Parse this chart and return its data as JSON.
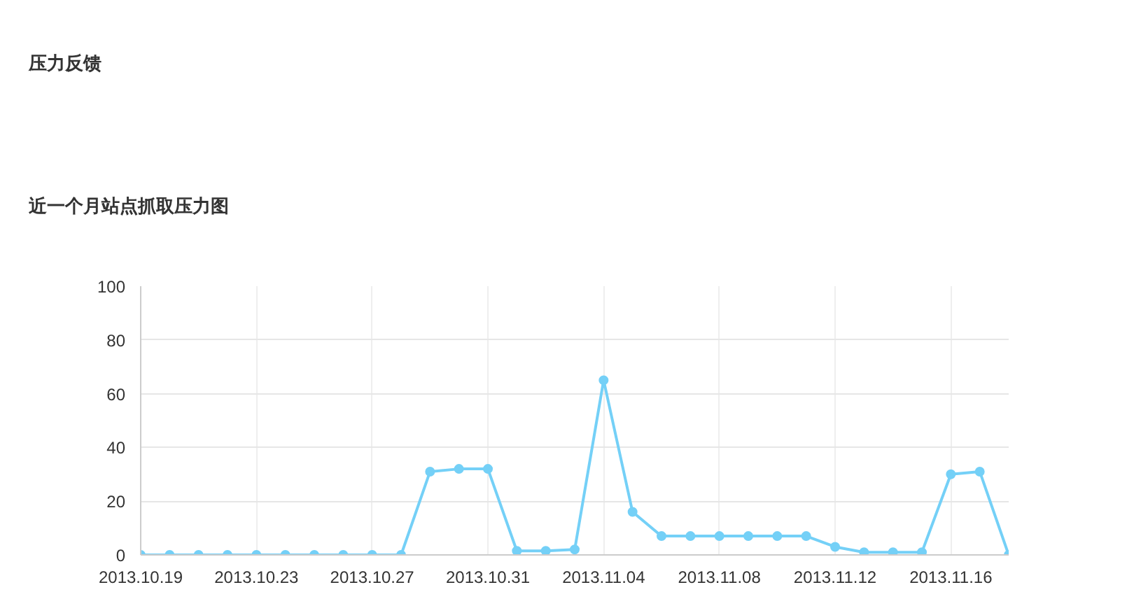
{
  "chart_data": {
    "type": "line",
    "title": "压力反馈",
    "subtitle": "近一个月站点抓取压力图",
    "x": [
      "2013-10-19",
      "2013-10-20",
      "2013-10-21",
      "2013-10-22",
      "2013-10-23",
      "2013-10-24",
      "2013-10-25",
      "2013-10-26",
      "2013-10-27",
      "2013-10-28",
      "2013-10-29",
      "2013-10-30",
      "2013-10-31",
      "2013-11-01",
      "2013-11-02",
      "2013-11-03",
      "2013-11-04",
      "2013-11-05",
      "2013-11-06",
      "2013-11-07",
      "2013-11-08",
      "2013-11-09",
      "2013-11-10",
      "2013-11-11",
      "2013-11-12",
      "2013-11-13",
      "2013-11-14",
      "2013-11-15",
      "2013-11-16",
      "2013-11-17",
      "2013-11-18"
    ],
    "series": [
      {
        "color": "#74d0f7",
        "values": [
          0,
          0,
          0,
          0,
          0,
          0,
          0,
          0,
          0,
          0,
          31,
          32,
          32,
          1.5,
          1.5,
          2,
          65,
          16,
          7,
          7,
          7,
          7,
          7,
          7,
          3,
          1,
          1,
          1,
          30,
          31,
          0
        ]
      }
    ],
    "xlim": [
      "2013-10-19",
      "2013-11-18"
    ],
    "xticks": [
      {
        "value": "2013-10-19",
        "label": "2013.10.19"
      },
      {
        "value": "2013-10-23",
        "label": "2013.10.23"
      },
      {
        "value": "2013-10-27",
        "label": "2013.10.27"
      },
      {
        "value": "2013-10-31",
        "label": "2013.10.31"
      },
      {
        "value": "2013-11-04",
        "label": "2013.11.04"
      },
      {
        "value": "2013-11-08",
        "label": "2013.11.08"
      },
      {
        "value": "2013-11-12",
        "label": "2013.11.12"
      },
      {
        "value": "2013-11-16",
        "label": "2013.11.16"
      }
    ],
    "ylim": [
      0,
      100
    ],
    "yticks": [
      0,
      20,
      40,
      60,
      80,
      100
    ],
    "grid": true,
    "marker": "circle",
    "line_style": "solid"
  }
}
